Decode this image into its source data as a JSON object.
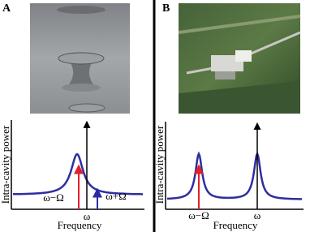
{
  "panels": [
    {
      "label": "A",
      "y_axis_label": "Intra-cavity power",
      "x_axis_label": "Frequency",
      "annotations": [
        "ω−Ω",
        "ω",
        "ω+Ω"
      ]
    },
    {
      "label": "B",
      "y_axis_label": "Intra-cavity power",
      "x_axis_label": "Frequency",
      "annotations": [
        "ω−Ω",
        "ω"
      ]
    }
  ]
}
